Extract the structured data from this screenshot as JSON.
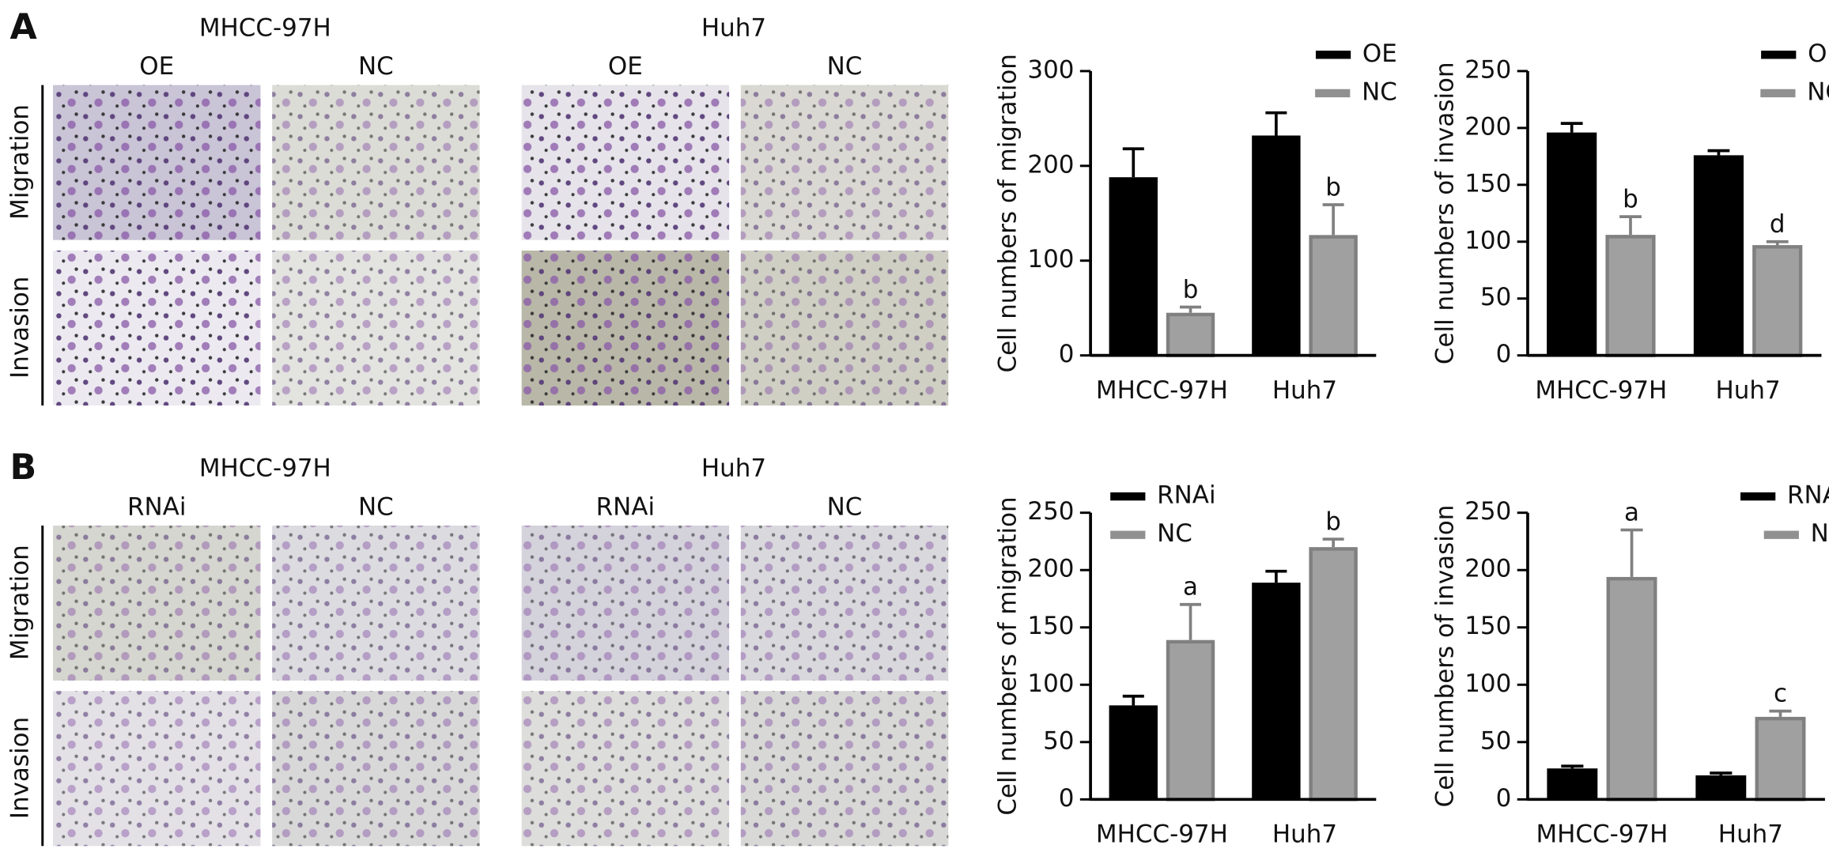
{
  "panels": [
    {
      "label": "A",
      "groups": [
        {
          "title": "MHCC-97H",
          "columns": [
            "OE",
            "NC"
          ]
        },
        {
          "title": "Huh7",
          "columns": [
            "OE",
            "NC"
          ]
        }
      ],
      "rows": [
        "Migration",
        "Invasion"
      ]
    },
    {
      "label": "B",
      "groups": [
        {
          "title": "MHCC-97H",
          "columns": [
            "RNAi",
            "NC"
          ]
        },
        {
          "title": "Huh7",
          "columns": [
            "RNAi",
            "NC"
          ]
        }
      ],
      "rows": [
        "Migration",
        "Invasion"
      ]
    }
  ],
  "chart_data": [
    {
      "type": "bar",
      "y_label": "Cell numbers of migration",
      "categories": [
        "MHCC-97H",
        "Huh7"
      ],
      "series": [
        {
          "name": "OE",
          "color": "#000000",
          "values": [
            188,
            232
          ],
          "errors": [
            30,
            24
          ]
        },
        {
          "name": "NC",
          "color": "#a0a0a0",
          "values": [
            45,
            127
          ],
          "errors": [
            6,
            32
          ],
          "significance": [
            "b",
            "b"
          ]
        }
      ],
      "ylim": [
        0,
        300
      ],
      "yticks": [
        0,
        100,
        200,
        300
      ],
      "legend": "top-right"
    },
    {
      "type": "bar",
      "y_label": "Cell numbers of invasion",
      "categories": [
        "MHCC-97H",
        "Huh7"
      ],
      "series": [
        {
          "name": "OE",
          "color": "#000000",
          "values": [
            196,
            176
          ],
          "errors": [
            8,
            4
          ]
        },
        {
          "name": "NC",
          "color": "#a0a0a0",
          "values": [
            106,
            97
          ],
          "errors": [
            16,
            3
          ],
          "significance": [
            "b",
            "d"
          ]
        }
      ],
      "ylim": [
        0,
        250
      ],
      "yticks": [
        0,
        50,
        100,
        150,
        200,
        250
      ],
      "legend": "top-right"
    },
    {
      "type": "bar",
      "y_label": "Cell numbers of migration",
      "categories": [
        "MHCC-97H",
        "Huh7"
      ],
      "series": [
        {
          "name": "RNAi",
          "color": "#000000",
          "values": [
            82,
            189
          ],
          "errors": [
            8,
            10
          ]
        },
        {
          "name": "NC",
          "color": "#a0a0a0",
          "values": [
            139,
            220
          ],
          "errors": [
            31,
            7
          ],
          "significance": [
            "a",
            "b"
          ]
        }
      ],
      "ylim": [
        0,
        250
      ],
      "yticks": [
        0,
        50,
        100,
        150,
        200,
        250
      ],
      "legend": "top-left"
    },
    {
      "type": "bar",
      "y_label": "Cell numbers of invasion",
      "categories": [
        "MHCC-97H",
        "Huh7"
      ],
      "series": [
        {
          "name": "RNAi",
          "color": "#000000",
          "values": [
            27,
            21
          ],
          "errors": [
            2,
            2
          ]
        },
        {
          "name": "NC",
          "color": "#a0a0a0",
          "values": [
            194,
            72
          ],
          "errors": [
            41,
            5
          ],
          "significance": [
            "a",
            "c"
          ]
        }
      ],
      "ylim": [
        0,
        250
      ],
      "yticks": [
        0,
        50,
        100,
        150,
        200,
        250
      ],
      "legend": "top-right"
    }
  ]
}
